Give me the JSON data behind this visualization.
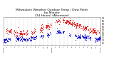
{
  "title": "Milwaukee Weather Outdoor Temp / Dew Point\nby Minute\n(24 Hours) (Alternate)",
  "title_fontsize": 3.2,
  "background_color": "#ffffff",
  "temp_color": "#dd0000",
  "dew_color": "#0000cc",
  "grid_color": "#aaaaaa",
  "ylim": [
    22,
    72
  ],
  "xlim": [
    0,
    1440
  ],
  "yticks": [
    25,
    30,
    35,
    40,
    45,
    50,
    55,
    60,
    65,
    70
  ],
  "ytick_labels": [
    "25",
    "30",
    "35",
    "40",
    "45",
    "50",
    "55",
    "60",
    "65",
    "70"
  ],
  "xtick_labels": [
    "12:00a",
    "1",
    "2",
    "3",
    "4",
    "5",
    "6",
    "7",
    "8",
    "9",
    "10",
    "11",
    "12:00p",
    "1",
    "2",
    "3",
    "4",
    "5",
    "6",
    "7",
    "8",
    "9",
    "10",
    "11",
    "12:00a"
  ],
  "num_points": 1440,
  "seed": 7
}
